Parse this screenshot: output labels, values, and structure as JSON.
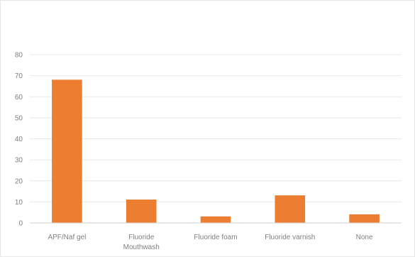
{
  "chart_data": {
    "type": "bar",
    "title": "",
    "xlabel": "",
    "ylabel": "",
    "categories": [
      [
        "APF/Naf gel"
      ],
      [
        "Fluoride",
        "Mouthwash"
      ],
      [
        "Fluoride foam"
      ],
      [
        "Fluoride varnish"
      ],
      [
        "None"
      ]
    ],
    "values": [
      68,
      11,
      3,
      13,
      4
    ],
    "ylim": [
      0,
      80
    ],
    "yticks": [
      0,
      10,
      20,
      30,
      40,
      50,
      60,
      70,
      80
    ],
    "grid": true,
    "legend": "none",
    "colors": {
      "bar": "#ED7D31",
      "bar_edge": "#E07020",
      "grid": "#e8e8e8",
      "axis": "#d0d0d0",
      "label": "#7f7f7f"
    }
  }
}
